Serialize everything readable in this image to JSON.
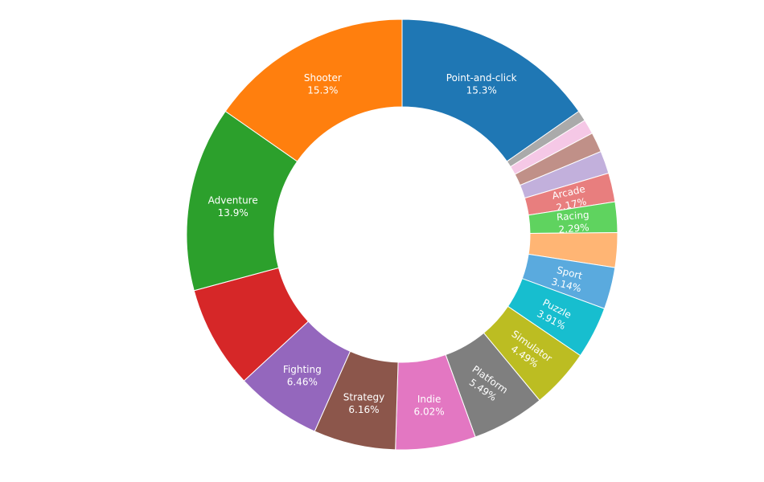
{
  "chart_data": {
    "type": "pie",
    "hole": true,
    "title": "",
    "legend": "none",
    "slices": [
      {
        "label": "Point-and-click",
        "value": 15.3,
        "pct_text": "15.3%",
        "color": "#1f77b4",
        "show_label": true
      },
      {
        "label": "",
        "value": 0.8,
        "pct_text": "",
        "color": "#aaaaaa",
        "show_label": false
      },
      {
        "label": "",
        "value": 1.1,
        "pct_text": "",
        "color": "#f5c8e6",
        "show_label": false
      },
      {
        "label": "",
        "value": 1.5,
        "pct_text": "",
        "color": "#c09088",
        "show_label": false
      },
      {
        "label": "",
        "value": 1.7,
        "pct_text": "",
        "color": "#c2b0dc",
        "show_label": false
      },
      {
        "label": "Arcade",
        "value": 2.17,
        "pct_text": "2.17%",
        "color": "#e87e7e",
        "show_label": true
      },
      {
        "label": "Racing",
        "value": 2.29,
        "pct_text": "2.29%",
        "color": "#5fd35f",
        "show_label": true
      },
      {
        "label": "",
        "value": 2.6,
        "pct_text": "",
        "color": "#ffb574",
        "show_label": false
      },
      {
        "label": "Sport",
        "value": 3.14,
        "pct_text": "3.14%",
        "color": "#5aaade",
        "show_label": true
      },
      {
        "label": "Puzzle",
        "value": 3.91,
        "pct_text": "3.91%",
        "color": "#17becf",
        "show_label": true
      },
      {
        "label": "Simulator",
        "value": 4.49,
        "pct_text": "4.49%",
        "color": "#bcbd22",
        "show_label": true
      },
      {
        "label": "Platform",
        "value": 5.49,
        "pct_text": "5.49%",
        "color": "#7f7f7f",
        "show_label": true
      },
      {
        "label": "Indie",
        "value": 6.02,
        "pct_text": "6.02%",
        "color": "#e377c2",
        "show_label": true
      },
      {
        "label": "Strategy",
        "value": 6.16,
        "pct_text": "6.16%",
        "color": "#8c564b",
        "show_label": true
      },
      {
        "label": "Fighting",
        "value": 6.46,
        "pct_text": "6.46%",
        "color": "#9467bd",
        "show_label": true
      },
      {
        "label": "",
        "value": 7.7,
        "pct_text": "",
        "color": "#d62728",
        "show_label": false
      },
      {
        "label": "Adventure",
        "value": 13.9,
        "pct_text": "13.9%",
        "color": "#2ca02c",
        "show_label": true
      },
      {
        "label": "Shooter",
        "value": 15.3,
        "pct_text": "15.3%",
        "color": "#ff7f0e",
        "show_label": true
      }
    ]
  }
}
